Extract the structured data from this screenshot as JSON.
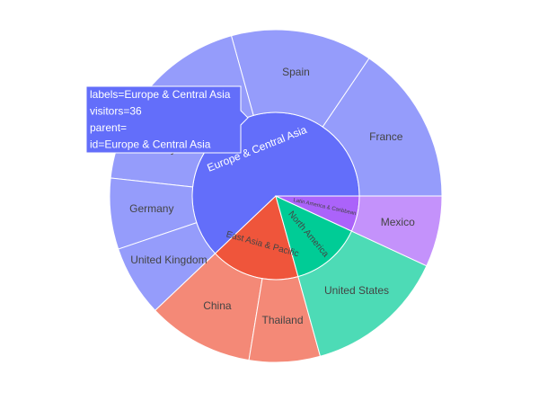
{
  "chart_data": {
    "type": "sunburst",
    "nodes": [
      {
        "label": "Europe & Central Asia",
        "value": 36,
        "color": "#636efa",
        "children": [
          {
            "label": "France",
            "value": 9,
            "color": "#959cfb"
          },
          {
            "label": "Spain",
            "value": 8,
            "color": "#959cfb"
          },
          {
            "label": null,
            "value": 6,
            "color": "#959cfb"
          },
          {
            "label": "Turkey",
            "value": 5,
            "color": "#959cfb"
          },
          {
            "label": "Germany",
            "value": 4,
            "color": "#959cfb"
          },
          {
            "label": "United Kingdom",
            "value": 4,
            "color": "#959cfb"
          }
        ]
      },
      {
        "label": "East Asia & Pacific",
        "value": 10,
        "color": "#ef553b",
        "children": [
          {
            "label": "China",
            "value": 6,
            "color": "#f48977"
          },
          {
            "label": "Thailand",
            "value": 4,
            "color": "#f48977"
          }
        ]
      },
      {
        "label": "North America",
        "value": 8,
        "color": "#00cc96",
        "children": [
          {
            "label": "United States",
            "value": 8,
            "color": "#4ddbb6"
          }
        ]
      },
      {
        "label": "Latin America & Caribbean",
        "value": 4,
        "color": "#ab63fa",
        "children": [
          {
            "label": "Mexico",
            "value": 4,
            "color": "#c492fb"
          }
        ]
      }
    ],
    "tooltip": {
      "lines": [
        "labels=Europe & Central Asia",
        "visitors=36",
        "parent=",
        "id=Europe & Central Asia"
      ],
      "color": "#636efa"
    }
  }
}
